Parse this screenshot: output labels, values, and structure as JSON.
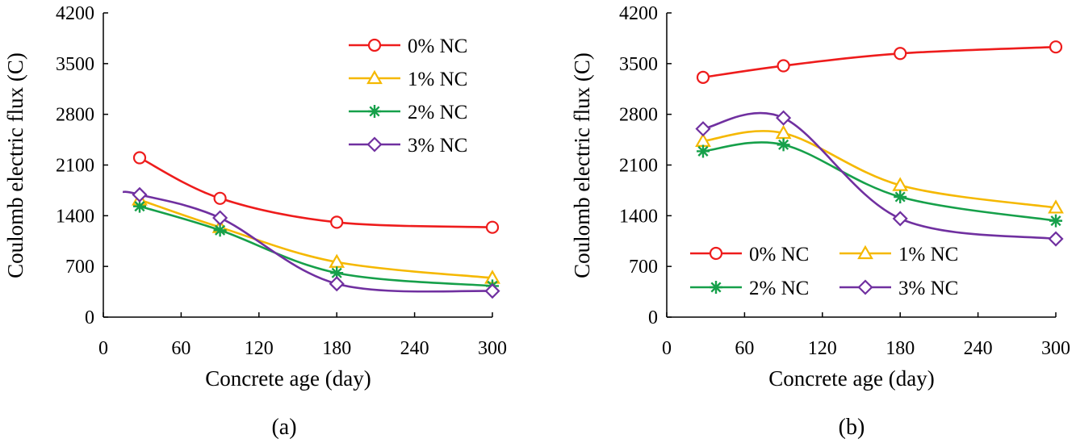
{
  "chart_data": [
    {
      "type": "line",
      "panel_label": "(a)",
      "xlabel": "Concrete age (day)",
      "ylabel": "Coulomb electric flux (C)",
      "xlim": [
        0,
        300
      ],
      "ylim": [
        0,
        4200
      ],
      "xticks": [
        "0",
        "60",
        "120",
        "180",
        "240",
        "300"
      ],
      "yticks": [
        "0",
        "700",
        "1400",
        "2100",
        "2800",
        "3500",
        "4200"
      ],
      "legend_position": "top-right",
      "series": [
        {
          "name": "0% NC",
          "color": "#ee1c1c",
          "marker": "circle",
          "x": [
            28,
            90,
            180,
            300
          ],
          "y": [
            2200,
            1640,
            1310,
            1240
          ]
        },
        {
          "name": "1% NC",
          "color": "#f5b800",
          "marker": "triangle",
          "x": [
            28,
            90,
            180,
            300
          ],
          "y": [
            1620,
            1240,
            760,
            540
          ]
        },
        {
          "name": "2% NC",
          "color": "#16a04a",
          "marker": "asterisk",
          "x": [
            28,
            90,
            180,
            300
          ],
          "y": [
            1530,
            1200,
            610,
            430
          ]
        },
        {
          "name": "3% NC",
          "color": "#7030a0",
          "marker": "diamond",
          "x": [
            28,
            90,
            180,
            300
          ],
          "y": [
            1690,
            1370,
            460,
            360
          ]
        }
      ]
    },
    {
      "type": "line",
      "panel_label": "(b)",
      "xlabel": "Concrete age (day)",
      "ylabel": "Coulomb electric flux (C)",
      "xlim": [
        0,
        300
      ],
      "ylim": [
        0,
        4200
      ],
      "xticks": [
        "0",
        "60",
        "120",
        "180",
        "240",
        "300"
      ],
      "yticks": [
        "0",
        "700",
        "1400",
        "2100",
        "2800",
        "3500",
        "4200"
      ],
      "legend_position": "bottom-right",
      "series": [
        {
          "name": "0% NC",
          "color": "#ee1c1c",
          "marker": "circle",
          "x": [
            28,
            90,
            180,
            300
          ],
          "y": [
            3310,
            3470,
            3640,
            3730
          ]
        },
        {
          "name": "1% NC",
          "color": "#f5b800",
          "marker": "triangle",
          "x": [
            28,
            90,
            180,
            300
          ],
          "y": [
            2430,
            2540,
            1820,
            1510
          ]
        },
        {
          "name": "2% NC",
          "color": "#16a04a",
          "marker": "asterisk",
          "x": [
            28,
            90,
            180,
            300
          ],
          "y": [
            2290,
            2380,
            1660,
            1330
          ]
        },
        {
          "name": "3% NC",
          "color": "#7030a0",
          "marker": "diamond",
          "x": [
            28,
            90,
            180,
            300
          ],
          "y": [
            2600,
            2750,
            1360,
            1080
          ]
        }
      ]
    }
  ]
}
